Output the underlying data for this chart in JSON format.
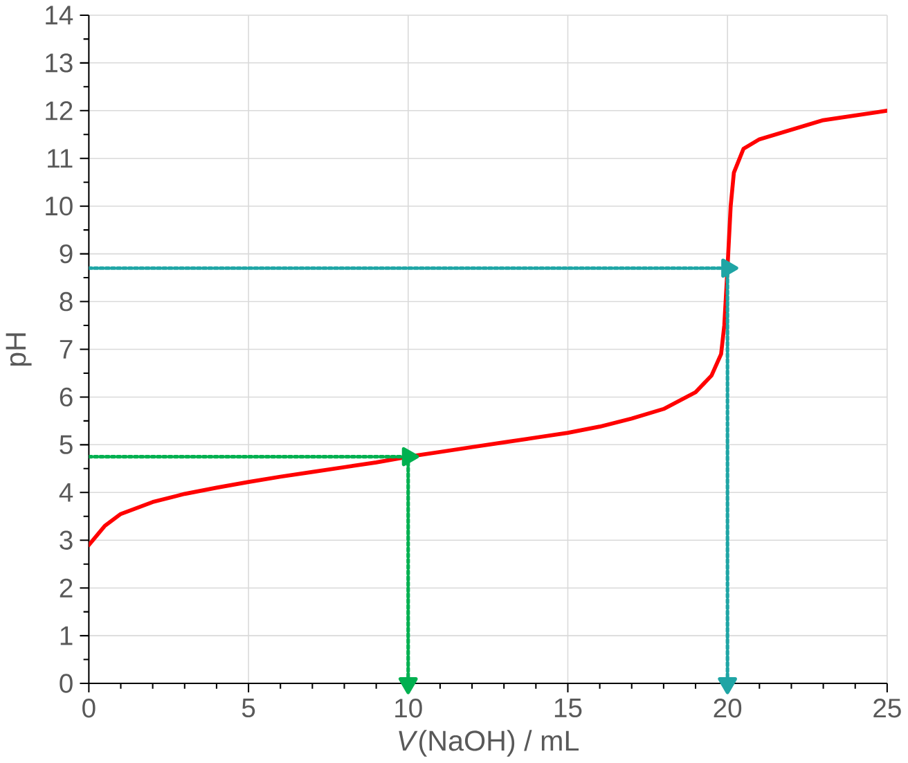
{
  "chart_data": {
    "type": "line",
    "xlabel": "*V*(NaOH) / mL",
    "ylabel": "pH",
    "xlim": [
      0,
      25
    ],
    "ylim": [
      0,
      14
    ],
    "xticks": [
      0,
      5,
      10,
      15,
      20,
      25
    ],
    "yticks": [
      0,
      1,
      2,
      3,
      4,
      5,
      6,
      7,
      8,
      9,
      10,
      11,
      12,
      13,
      14
    ],
    "grid": true,
    "marker": "none",
    "series": [
      {
        "color": "#ff0000",
        "line_style": "solid",
        "x": [
          0,
          0.5,
          1,
          2,
          3,
          4,
          5,
          6,
          7,
          8,
          9,
          10,
          11,
          12,
          13,
          14,
          15,
          16,
          17,
          18,
          19,
          19.5,
          19.8,
          19.9,
          20,
          20.1,
          20.2,
          20.5,
          21,
          22,
          23,
          24,
          25
        ],
        "values": [
          2.9,
          3.3,
          3.55,
          3.8,
          3.97,
          4.1,
          4.22,
          4.33,
          4.43,
          4.53,
          4.63,
          4.75,
          4.85,
          4.95,
          5.05,
          5.15,
          5.25,
          5.38,
          5.55,
          5.75,
          6.1,
          6.45,
          6.9,
          7.5,
          8.7,
          10.0,
          10.7,
          11.2,
          11.4,
          11.6,
          11.8,
          11.9,
          12.0
        ]
      },
      {
        "color": "#00b050",
        "line_style": "dotted",
        "marker": "triangle",
        "x": [
          0,
          10
        ],
        "values": [
          4.75,
          4.75
        ]
      },
      {
        "color": "#00b050",
        "line_style": "dotted",
        "marker": "triangle",
        "x": [
          10,
          10
        ],
        "values": [
          4.75,
          0
        ]
      },
      {
        "color": "#1fa5a5",
        "line_style": "dotted",
        "marker": "triangle",
        "x": [
          0,
          20
        ],
        "values": [
          8.7,
          8.7
        ]
      },
      {
        "color": "#1fa5a5",
        "line_style": "dotted",
        "marker": "triangle",
        "x": [
          20,
          20
        ],
        "values": [
          8.7,
          0
        ]
      }
    ]
  }
}
